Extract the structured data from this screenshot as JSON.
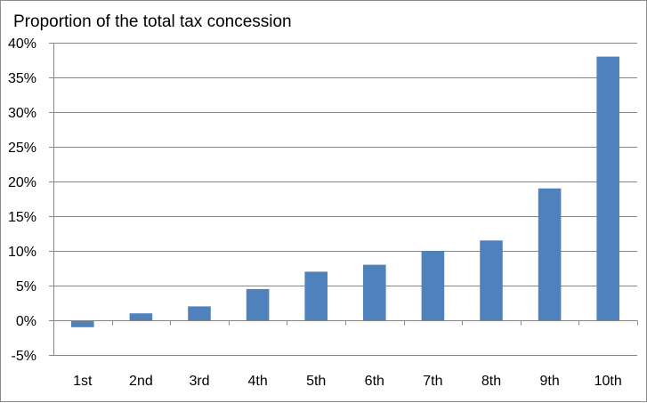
{
  "chart_data": {
    "type": "bar",
    "title": "Proportion of the total tax concession",
    "xlabel": "",
    "ylabel": "",
    "categories": [
      "1st",
      "2nd",
      "3rd",
      "4th",
      "5th",
      "6th",
      "7th",
      "8th",
      "9th",
      "10th"
    ],
    "values": [
      -1,
      1,
      2,
      4.5,
      7,
      8,
      10,
      11.5,
      19,
      38
    ],
    "ylim": [
      -5,
      40
    ],
    "yticks": [
      -5,
      0,
      5,
      10,
      15,
      20,
      25,
      30,
      35,
      40
    ],
    "ytick_labels": [
      "-5%",
      "0%",
      "5%",
      "10%",
      "15%",
      "20%",
      "25%",
      "30%",
      "35%",
      "40%"
    ],
    "grid": true,
    "legend": "none",
    "colors": {
      "bar": "#4f81bd",
      "grid": "#868686",
      "axis": "#868686",
      "frame": "#8c8c8c"
    }
  }
}
